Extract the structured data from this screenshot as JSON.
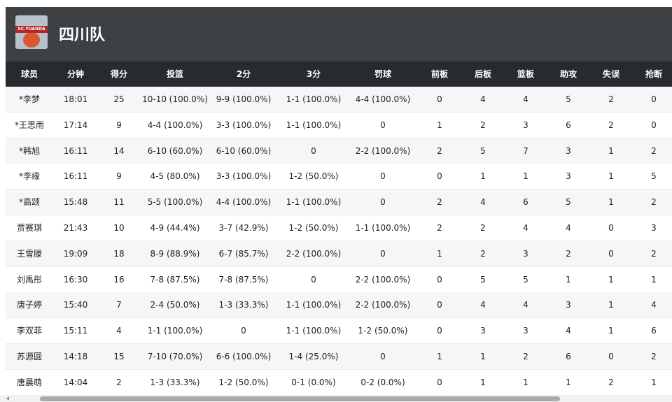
{
  "header": {
    "logo_text": "SC.YUANDA",
    "title": "四川队"
  },
  "table": {
    "columns": [
      "球员",
      "分钟",
      "得分",
      "投篮",
      "2分",
      "3分",
      "罚球",
      "前板",
      "后板",
      "篮板",
      "助攻",
      "失误",
      "抢断"
    ],
    "rows": [
      [
        "*李梦",
        "18:01",
        "25",
        "10-10 (100.0%)",
        "9-9 (100.0%)",
        "1-1 (100.0%)",
        "4-4 (100.0%)",
        "0",
        "4",
        "4",
        "5",
        "2",
        "0"
      ],
      [
        "*王思雨",
        "17:14",
        "9",
        "4-4 (100.0%)",
        "3-3 (100.0%)",
        "1-1 (100.0%)",
        "0",
        "1",
        "2",
        "3",
        "6",
        "2",
        "0"
      ],
      [
        "*韩旭",
        "16:11",
        "14",
        "6-10 (60.0%)",
        "6-10 (60.0%)",
        "0",
        "2-2 (100.0%)",
        "2",
        "5",
        "7",
        "3",
        "1",
        "2"
      ],
      [
        "*李缘",
        "16:11",
        "9",
        "4-5 (80.0%)",
        "3-3 (100.0%)",
        "1-2 (50.0%)",
        "0",
        "0",
        "1",
        "1",
        "3",
        "1",
        "5"
      ],
      [
        "*高颂",
        "15:48",
        "11",
        "5-5 (100.0%)",
        "4-4 (100.0%)",
        "1-1 (100.0%)",
        "0",
        "2",
        "4",
        "6",
        "5",
        "1",
        "2"
      ],
      [
        "贾赛琪",
        "21:43",
        "10",
        "4-9 (44.4%)",
        "3-7 (42.9%)",
        "1-2 (50.0%)",
        "1-1 (100.0%)",
        "2",
        "2",
        "4",
        "4",
        "0",
        "3"
      ],
      [
        "王雪滕",
        "19:09",
        "18",
        "8-9 (88.9%)",
        "6-7 (85.7%)",
        "2-2 (100.0%)",
        "0",
        "1",
        "2",
        "3",
        "2",
        "0",
        "2"
      ],
      [
        "刘禹彤",
        "16:30",
        "16",
        "7-8 (87.5%)",
        "7-8 (87.5%)",
        "0",
        "2-2 (100.0%)",
        "0",
        "5",
        "5",
        "1",
        "1",
        "1"
      ],
      [
        "唐子婷",
        "15:40",
        "7",
        "2-4 (50.0%)",
        "1-3 (33.3%)",
        "1-1 (100.0%)",
        "2-2 (100.0%)",
        "0",
        "4",
        "4",
        "3",
        "1",
        "4"
      ],
      [
        "李双菲",
        "15:11",
        "4",
        "1-1 (100.0%)",
        "0",
        "1-1 (100.0%)",
        "1-2 (50.0%)",
        "0",
        "3",
        "3",
        "4",
        "1",
        "6"
      ],
      [
        "苏源圆",
        "14:18",
        "15",
        "7-10 (70.0%)",
        "6-6 (100.0%)",
        "1-4 (25.0%)",
        "0",
        "1",
        "1",
        "2",
        "6",
        "0",
        "2"
      ],
      [
        "唐晨萌",
        "14:04",
        "2",
        "1-3 (33.3%)",
        "1-2 (50.0%)",
        "0-1 (0.0%)",
        "0-2 (0.0%)",
        "0",
        "1",
        "1",
        "1",
        "2",
        "1"
      ]
    ]
  }
}
